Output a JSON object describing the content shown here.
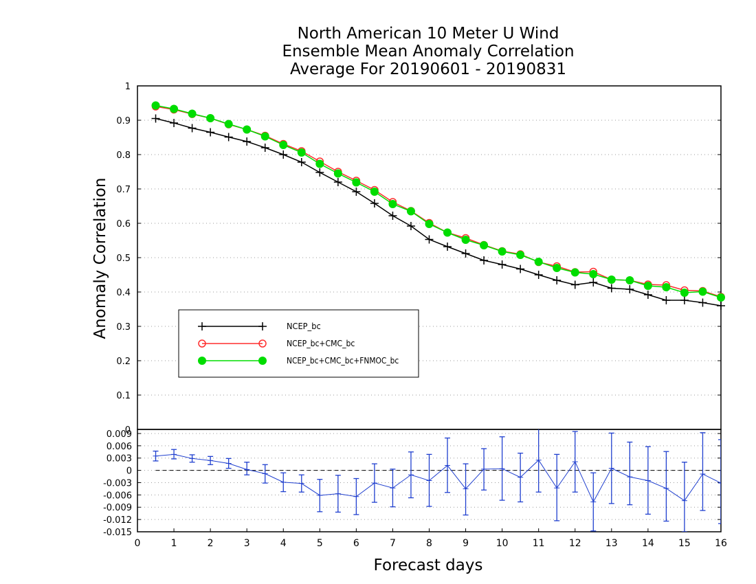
{
  "title": [
    "North American 10 Meter U Wind",
    "Ensemble Mean Anomaly Correlation",
    "Average For 20190601 - 20190831"
  ],
  "chart_data": [
    {
      "type": "line",
      "title": "North American 10 Meter U Wind Ensemble Mean Anomaly Correlation Average For 20190601 - 20190831",
      "ylabel": "Anomaly Correlation",
      "xlim": [
        0,
        16
      ],
      "ylim": [
        0,
        1
      ],
      "y_ticks": [
        "0",
        "0.1",
        "0.2",
        "0.3",
        "0.4",
        "0.5",
        "0.6",
        "0.7",
        "0.8",
        "0.9",
        "1"
      ],
      "grid": "dotted horizontal",
      "legend_position": "lower-left",
      "x": [
        0.5,
        1,
        1.5,
        2,
        2.5,
        3,
        3.5,
        4,
        4.5,
        5,
        5.5,
        6,
        6.5,
        7,
        7.5,
        8,
        8.5,
        9,
        9.5,
        10,
        10.5,
        11,
        11.5,
        12,
        12.5,
        13,
        13.5,
        14,
        14.5,
        15,
        15.5,
        16
      ],
      "series": [
        {
          "name": "NCEP_bc",
          "color": "#000000",
          "marker": "plus",
          "values": [
            0.905,
            0.892,
            0.877,
            0.865,
            0.851,
            0.838,
            0.82,
            0.8,
            0.778,
            0.748,
            0.72,
            0.692,
            0.658,
            0.622,
            0.592,
            0.553,
            0.532,
            0.512,
            0.492,
            0.48,
            0.467,
            0.45,
            0.434,
            0.421,
            0.428,
            0.411,
            0.408,
            0.392,
            0.376,
            0.376,
            0.369,
            0.36
          ]
        },
        {
          "name": "NCEP_bc+CMC_bc",
          "color": "#ff2d2d",
          "marker": "open-circle",
          "values": [
            0.94,
            0.931,
            0.918,
            0.906,
            0.888,
            0.873,
            0.855,
            0.831,
            0.81,
            0.78,
            0.75,
            0.724,
            0.697,
            0.662,
            0.636,
            0.601,
            0.573,
            0.557,
            0.537,
            0.519,
            0.51,
            0.487,
            0.475,
            0.458,
            0.459,
            0.436,
            0.434,
            0.422,
            0.42,
            0.405,
            0.403,
            0.386
          ]
        },
        {
          "name": "NCEP_bc+CMC_bc+FNMOC_bc",
          "color": "#00dd00",
          "marker": "filled-circle",
          "values": [
            0.943,
            0.933,
            0.919,
            0.906,
            0.889,
            0.873,
            0.853,
            0.828,
            0.806,
            0.773,
            0.745,
            0.719,
            0.692,
            0.656,
            0.635,
            0.598,
            0.573,
            0.552,
            0.536,
            0.518,
            0.508,
            0.488,
            0.47,
            0.457,
            0.452,
            0.436,
            0.434,
            0.418,
            0.414,
            0.398,
            0.401,
            0.384
          ]
        }
      ]
    },
    {
      "type": "line",
      "subtype": "difference with error bars",
      "xlabel": "Forecast days",
      "xlim": [
        0,
        16
      ],
      "x_ticks": [
        "0",
        "1",
        "2",
        "3",
        "4",
        "5",
        "6",
        "7",
        "8",
        "9",
        "10",
        "11",
        "12",
        "13",
        "14",
        "15",
        "16"
      ],
      "ylim": [
        -0.015,
        0.01
      ],
      "y_ticks": [
        "0.009",
        "0.006",
        "0.003",
        "0",
        "-0.003",
        "-0.006",
        "-0.009",
        "-0.012",
        "-0.015"
      ],
      "grid": "dotted horizontal",
      "reference_line": 0,
      "color": "#1f3fcf",
      "x": [
        0.5,
        1,
        1.5,
        2,
        2.5,
        3,
        3.5,
        4,
        4.5,
        5,
        5.5,
        6,
        6.5,
        7,
        7.5,
        8,
        8.5,
        9,
        9.5,
        10,
        10.5,
        11,
        11.5,
        12,
        12.5,
        13,
        13.5,
        14,
        14.5,
        15,
        15.5,
        16
      ],
      "values": [
        0.0035,
        0.0039,
        0.0029,
        0.0024,
        0.0017,
        0.0002,
        -0.0008,
        -0.0029,
        -0.0032,
        -0.0061,
        -0.0057,
        -0.0064,
        -0.0031,
        -0.0043,
        -0.0011,
        -0.0025,
        0.0012,
        -0.0045,
        0.0003,
        0.0004,
        -0.0017,
        0.0025,
        -0.0043,
        0.0021,
        -0.0077,
        0.0005,
        -0.0016,
        -0.0025,
        -0.0044,
        -0.0074,
        -0.0009,
        -0.0031
      ],
      "err_low": [
        0.0023,
        0.0028,
        0.002,
        0.0014,
        0.0005,
        -0.0011,
        -0.0031,
        -0.0052,
        -0.0053,
        -0.0101,
        -0.0102,
        -0.0108,
        -0.0078,
        -0.0089,
        -0.0067,
        -0.0088,
        -0.0054,
        -0.0109,
        -0.0048,
        -0.0073,
        -0.0077,
        -0.0053,
        -0.0123,
        -0.0053,
        -0.0148,
        -0.0081,
        -0.0084,
        -0.0107,
        -0.0124,
        -0.015,
        -0.0098,
        -0.013
      ],
      "err_high": [
        0.0047,
        0.0051,
        0.0038,
        0.0034,
        0.0029,
        0.002,
        0.0014,
        -0.0006,
        -0.0011,
        -0.0022,
        -0.0012,
        -0.002,
        0.0016,
        0.0003,
        0.0045,
        0.0039,
        0.0079,
        0.0016,
        0.0053,
        0.0082,
        0.0042,
        0.0102,
        0.0039,
        0.0095,
        -0.0006,
        0.0091,
        0.0069,
        0.0058,
        0.0046,
        0.002,
        0.0092,
        0.0075
      ]
    }
  ]
}
